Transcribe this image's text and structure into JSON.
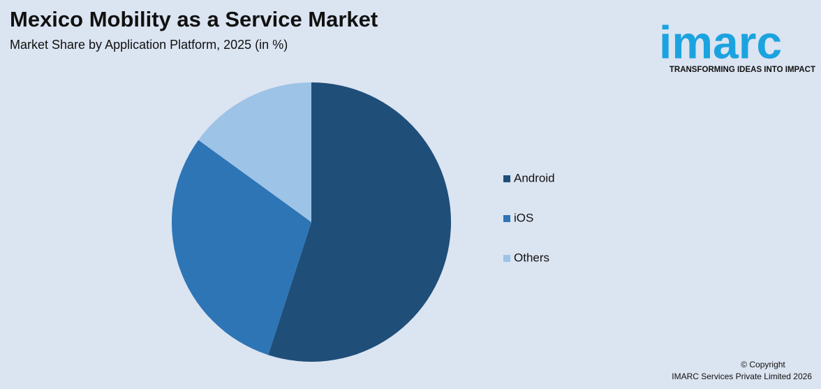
{
  "chart_data": {
    "type": "pie",
    "title": "Mexico Mobility as a Service Market",
    "subtitle": "Market Share by Application Platform, 2025 (in %)",
    "categories": [
      "Android",
      "iOS",
      "Others"
    ],
    "values": [
      55,
      30,
      15
    ],
    "colors": [
      "#1f4e79",
      "#2e75b6",
      "#9dc3e6"
    ],
    "legend": "right"
  },
  "branding": {
    "logo": "imarc",
    "tagline": "TRANSFORMING IDEAS INTO IMPACT",
    "copyright": "© Copyright",
    "company": "IMARC Services Private Limited 2026"
  }
}
